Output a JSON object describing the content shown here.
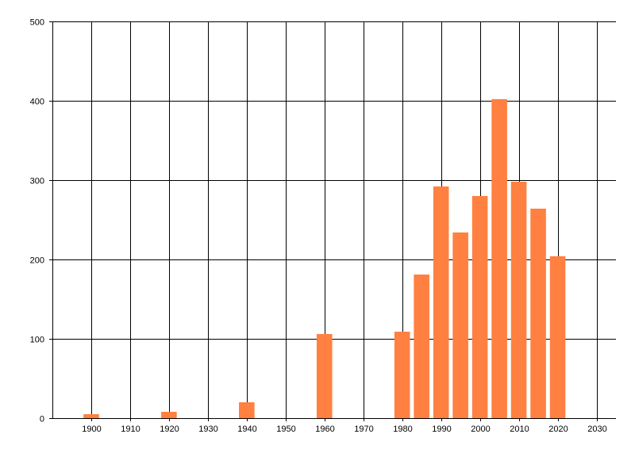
{
  "chart_data": {
    "type": "bar",
    "title": "",
    "xlabel": "",
    "ylabel": "",
    "x": [
      1900,
      1920,
      1940,
      1960,
      1980,
      1985,
      1990,
      1995,
      2000,
      2005,
      2010,
      2015,
      2020
    ],
    "values": [
      5,
      8,
      20,
      106,
      109,
      181,
      292,
      234,
      280,
      402,
      298,
      264,
      204
    ],
    "xlim": [
      1890,
      2035
    ],
    "ylim": [
      0,
      500
    ],
    "x_ticks": [
      1900,
      1910,
      1920,
      1930,
      1940,
      1950,
      1960,
      1970,
      1980,
      1990,
      2000,
      2010,
      2020,
      2030
    ],
    "y_ticks": [
      0,
      100,
      200,
      300,
      400,
      500
    ],
    "bar_width_years": 4,
    "grid": true,
    "legend": "none",
    "colors": {
      "bar": "#FF8040",
      "grid": "#000000",
      "background": "#FFFFFF"
    }
  }
}
